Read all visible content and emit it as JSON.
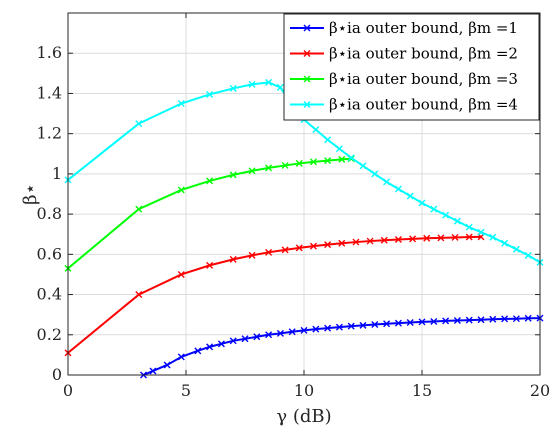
{
  "chart_data": {
    "type": "line",
    "xlabel": "γ (dB)",
    "ylabel": "β⋆",
    "xlim": [
      0,
      20
    ],
    "ylim": [
      0,
      1.8
    ],
    "xticks": [
      "0",
      "5",
      "10",
      "15",
      "20"
    ],
    "yticks": [
      "0",
      "0.2",
      "0.4",
      "0.6",
      "0.8",
      "1",
      "1.2",
      "1.4",
      "1.6"
    ],
    "grid": true,
    "legend_position": "top-right",
    "series": [
      {
        "name": "β⋆ia outer bound, βm =1",
        "color": "#0000ff",
        "x": [
          3.2,
          3.6,
          4.2,
          4.8,
          5.5,
          6.0,
          6.5,
          7.0,
          7.5,
          8.0,
          8.5,
          9.0,
          9.5,
          10.0,
          10.5,
          11.0,
          11.5,
          12.0,
          12.5,
          13.0,
          13.5,
          14.0,
          14.5,
          15.0,
          15.5,
          16.0,
          16.5,
          17.0,
          17.5,
          18.0,
          18.5,
          19.0,
          19.5,
          20.0
        ],
        "y": [
          0.0,
          0.02,
          0.05,
          0.09,
          0.12,
          0.14,
          0.155,
          0.17,
          0.18,
          0.19,
          0.2,
          0.207,
          0.215,
          0.222,
          0.228,
          0.233,
          0.238,
          0.243,
          0.247,
          0.251,
          0.255,
          0.258,
          0.261,
          0.264,
          0.266,
          0.269,
          0.271,
          0.273,
          0.275,
          0.277,
          0.279,
          0.28,
          0.282,
          0.283
        ]
      },
      {
        "name": "β⋆ia outer bound, βm =2",
        "color": "#ff0000",
        "x": [
          0,
          3.0,
          4.8,
          6.0,
          7.0,
          7.8,
          8.5,
          9.2,
          9.8,
          10.4,
          11.0,
          11.6,
          12.2,
          12.8,
          13.4,
          14.0,
          14.6,
          15.2,
          15.8,
          16.4,
          17.0,
          17.5
        ],
        "y": [
          0.11,
          0.4,
          0.5,
          0.545,
          0.575,
          0.595,
          0.61,
          0.622,
          0.632,
          0.641,
          0.648,
          0.655,
          0.661,
          0.666,
          0.67,
          0.674,
          0.677,
          0.68,
          0.682,
          0.684,
          0.686,
          0.687
        ]
      },
      {
        "name": "β⋆ia outer bound, βm =3",
        "color": "#00ff00",
        "x": [
          0,
          3.0,
          4.8,
          6.0,
          7.0,
          7.8,
          8.5,
          9.2,
          9.8,
          10.4,
          11.0,
          11.6,
          12.0
        ],
        "y": [
          0.53,
          0.825,
          0.92,
          0.965,
          0.995,
          1.015,
          1.03,
          1.042,
          1.052,
          1.06,
          1.066,
          1.072,
          1.075
        ]
      },
      {
        "name": "β⋆ia outer bound, βm =4",
        "color": "#00ffff",
        "x": [
          0,
          3.0,
          4.8,
          6.0,
          7.0,
          7.8,
          8.5,
          9.0,
          9.5,
          10.0,
          10.5,
          11.0,
          11.5,
          12.0,
          12.5,
          13.0,
          13.5,
          14.0,
          14.5,
          15.0,
          15.5,
          16.0,
          16.5,
          17.0,
          17.5,
          18.0,
          18.5,
          19.0,
          19.5,
          20.0
        ],
        "y": [
          0.97,
          1.25,
          1.35,
          1.395,
          1.425,
          1.445,
          1.455,
          1.43,
          1.34,
          1.27,
          1.22,
          1.17,
          1.125,
          1.08,
          1.04,
          1.0,
          0.96,
          0.925,
          0.89,
          0.855,
          0.825,
          0.795,
          0.765,
          0.735,
          0.71,
          0.685,
          0.655,
          0.625,
          0.595,
          0.56
        ]
      }
    ]
  }
}
